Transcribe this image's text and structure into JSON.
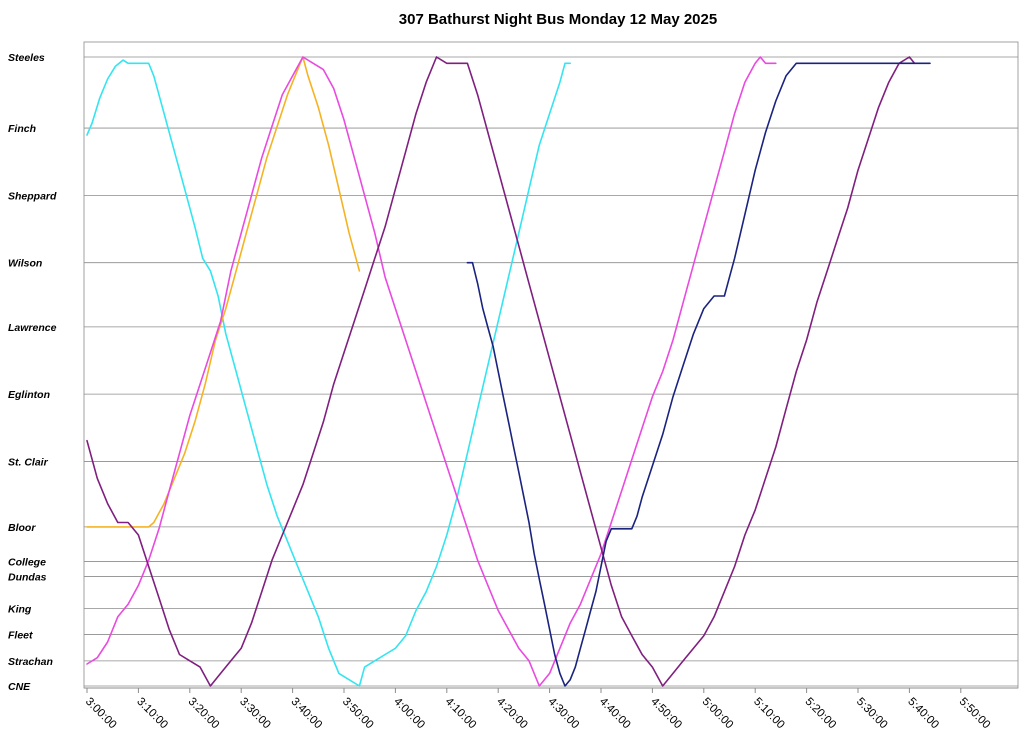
{
  "chart_data": {
    "type": "line",
    "title": "307 Bathurst Night Bus Monday 12 May 2025",
    "xlabel": "",
    "ylabel": "",
    "x_range": [
      "3:00:00",
      "6:00:00"
    ],
    "x_ticks": [
      "3:00:00",
      "3:10:00",
      "3:20:00",
      "3:30:00",
      "3:40:00",
      "3:50:00",
      "4:00:00",
      "4:10:00",
      "4:20:00",
      "4:30:00",
      "4:40:00",
      "4:50:00",
      "5:00:00",
      "5:10:00",
      "5:20:00",
      "5:30:00",
      "5:40:00",
      "5:50:00"
    ],
    "y_stops": [
      {
        "name": "Steeles",
        "pos": 1.0
      },
      {
        "name": "Finch",
        "pos": 0.887
      },
      {
        "name": "Sheppard",
        "pos": 0.78
      },
      {
        "name": "Wilson",
        "pos": 0.673
      },
      {
        "name": "Lawrence",
        "pos": 0.571
      },
      {
        "name": "Eglinton",
        "pos": 0.464
      },
      {
        "name": "St. Clair",
        "pos": 0.357
      },
      {
        "name": "Bloor",
        "pos": 0.253
      },
      {
        "name": "College",
        "pos": 0.198
      },
      {
        "name": "Dundas",
        "pos": 0.174
      },
      {
        "name": "King",
        "pos": 0.123
      },
      {
        "name": "Fleet",
        "pos": 0.082
      },
      {
        "name": "Strachan",
        "pos": 0.04
      },
      {
        "name": "CNE",
        "pos": 0.0
      }
    ],
    "grid": true,
    "legend": "none",
    "series": [
      {
        "color": "#33e5f0",
        "points": [
          [
            "3:00:00",
            0.876
          ],
          [
            "3:01:00",
            0.895
          ],
          [
            "3:02:30",
            0.935
          ],
          [
            "3:04:00",
            0.965
          ],
          [
            "3:05:30",
            0.985
          ],
          [
            "3:07:00",
            0.995
          ],
          [
            "3:08:00",
            0.99
          ],
          [
            "3:12:00",
            0.99
          ],
          [
            "3:13:00",
            0.97
          ],
          [
            "3:15:00",
            0.91
          ],
          [
            "3:17:00",
            0.85
          ],
          [
            "3:19:00",
            0.79
          ],
          [
            "3:21:00",
            0.73
          ],
          [
            "3:22:30",
            0.68
          ],
          [
            "3:24:00",
            0.66
          ],
          [
            "3:25:30",
            0.62
          ],
          [
            "3:27:00",
            0.56
          ],
          [
            "3:29:00",
            0.5
          ],
          [
            "3:31:00",
            0.44
          ],
          [
            "3:33:00",
            0.38
          ],
          [
            "3:35:00",
            0.32
          ],
          [
            "3:37:00",
            0.27
          ],
          [
            "3:39:00",
            0.23
          ],
          [
            "3:41:00",
            0.19
          ],
          [
            "3:43:00",
            0.15
          ],
          [
            "3:45:00",
            0.11
          ],
          [
            "3:47:00",
            0.06
          ],
          [
            "3:49:00",
            0.02
          ],
          [
            "3:51:00",
            0.01
          ],
          [
            "3:53:00",
            0.0
          ],
          [
            "3:54:00",
            0.03
          ],
          [
            "3:56:00",
            0.04
          ],
          [
            "3:58:00",
            0.05
          ],
          [
            "4:00:00",
            0.06
          ],
          [
            "4:02:00",
            0.08
          ],
          [
            "4:04:00",
            0.12
          ],
          [
            "4:06:00",
            0.15
          ],
          [
            "4:08:00",
            0.19
          ],
          [
            "4:10:00",
            0.24
          ],
          [
            "4:12:00",
            0.3
          ],
          [
            "4:14:00",
            0.37
          ],
          [
            "4:16:00",
            0.44
          ],
          [
            "4:18:00",
            0.51
          ],
          [
            "4:20:00",
            0.58
          ],
          [
            "4:22:00",
            0.65
          ],
          [
            "4:24:00",
            0.72
          ],
          [
            "4:26:00",
            0.79
          ],
          [
            "4:28:00",
            0.86
          ],
          [
            "4:30:00",
            0.91
          ],
          [
            "4:32:00",
            0.96
          ],
          [
            "4:33:00",
            0.99
          ],
          [
            "4:34:00",
            0.99
          ]
        ]
      },
      {
        "color": "#f5b324",
        "points": [
          [
            "3:00:00",
            0.253
          ],
          [
            "3:12:00",
            0.253
          ],
          [
            "3:13:00",
            0.26
          ],
          [
            "3:15:00",
            0.29
          ],
          [
            "3:17:00",
            0.33
          ],
          [
            "3:19:00",
            0.37
          ],
          [
            "3:21:00",
            0.42
          ],
          [
            "3:23:00",
            0.48
          ],
          [
            "3:25:00",
            0.55
          ],
          [
            "3:27:00",
            0.6
          ],
          [
            "3:29:00",
            0.66
          ],
          [
            "3:31:00",
            0.72
          ],
          [
            "3:33:00",
            0.78
          ],
          [
            "3:35:00",
            0.84
          ],
          [
            "3:37:00",
            0.89
          ],
          [
            "3:39:00",
            0.94
          ],
          [
            "3:41:00",
            0.98
          ],
          [
            "3:42:00",
            1.0
          ],
          [
            "3:43:00",
            0.97
          ],
          [
            "3:45:00",
            0.92
          ],
          [
            "3:47:00",
            0.86
          ],
          [
            "3:49:00",
            0.79
          ],
          [
            "3:51:00",
            0.72
          ],
          [
            "3:53:00",
            0.66
          ]
        ]
      },
      {
        "color": "#e94ae0",
        "points": [
          [
            "3:00:00",
            0.035
          ],
          [
            "3:02:00",
            0.045
          ],
          [
            "3:04:00",
            0.07
          ],
          [
            "3:06:00",
            0.11
          ],
          [
            "3:08:00",
            0.13
          ],
          [
            "3:10:00",
            0.16
          ],
          [
            "3:12:00",
            0.2
          ],
          [
            "3:14:00",
            0.25
          ],
          [
            "3:16:00",
            0.31
          ],
          [
            "3:18:00",
            0.37
          ],
          [
            "3:20:00",
            0.43
          ],
          [
            "3:22:00",
            0.48
          ],
          [
            "3:24:00",
            0.53
          ],
          [
            "3:26:00",
            0.58
          ],
          [
            "3:28:00",
            0.66
          ],
          [
            "3:30:00",
            0.72
          ],
          [
            "3:32:00",
            0.78
          ],
          [
            "3:34:00",
            0.84
          ],
          [
            "3:36:00",
            0.89
          ],
          [
            "3:38:00",
            0.94
          ],
          [
            "3:40:00",
            0.97
          ],
          [
            "3:42:00",
            1.0
          ],
          [
            "3:44:00",
            0.99
          ],
          [
            "3:46:00",
            0.98
          ],
          [
            "3:48:00",
            0.95
          ],
          [
            "3:50:00",
            0.9
          ],
          [
            "3:52:00",
            0.84
          ],
          [
            "3:54:00",
            0.78
          ],
          [
            "3:56:00",
            0.72
          ],
          [
            "3:58:00",
            0.65
          ],
          [
            "4:00:00",
            0.6
          ],
          [
            "4:02:00",
            0.55
          ],
          [
            "4:04:00",
            0.5
          ],
          [
            "4:06:00",
            0.45
          ],
          [
            "4:08:00",
            0.4
          ],
          [
            "4:10:00",
            0.35
          ],
          [
            "4:12:00",
            0.3
          ],
          [
            "4:14:00",
            0.25
          ],
          [
            "4:16:00",
            0.2
          ],
          [
            "4:18:00",
            0.16
          ],
          [
            "4:20:00",
            0.12
          ],
          [
            "4:22:00",
            0.09
          ],
          [
            "4:24:00",
            0.06
          ],
          [
            "4:26:00",
            0.04
          ],
          [
            "4:28:00",
            0.0
          ],
          [
            "4:30:00",
            0.02
          ],
          [
            "4:32:00",
            0.06
          ],
          [
            "4:34:00",
            0.1
          ],
          [
            "4:36:00",
            0.13
          ],
          [
            "4:38:00",
            0.17
          ],
          [
            "4:40:00",
            0.21
          ],
          [
            "4:42:00",
            0.26
          ],
          [
            "4:44:00",
            0.31
          ],
          [
            "4:46:00",
            0.36
          ],
          [
            "4:48:00",
            0.41
          ],
          [
            "4:50:00",
            0.46
          ],
          [
            "4:52:00",
            0.5
          ],
          [
            "4:54:00",
            0.55
          ],
          [
            "4:56:00",
            0.61
          ],
          [
            "4:58:00",
            0.67
          ],
          [
            "5:00:00",
            0.73
          ],
          [
            "5:02:00",
            0.79
          ],
          [
            "5:04:00",
            0.85
          ],
          [
            "5:06:00",
            0.91
          ],
          [
            "5:08:00",
            0.96
          ],
          [
            "5:10:00",
            0.99
          ],
          [
            "5:11:00",
            1.0
          ],
          [
            "5:12:00",
            0.99
          ],
          [
            "5:14:00",
            0.99
          ]
        ]
      },
      {
        "color": "#7f1f7f",
        "points": [
          [
            "3:00:00",
            0.39
          ],
          [
            "3:02:00",
            0.33
          ],
          [
            "3:04:00",
            0.29
          ],
          [
            "3:06:00",
            0.26
          ],
          [
            "3:08:00",
            0.26
          ],
          [
            "3:10:00",
            0.24
          ],
          [
            "3:12:00",
            0.19
          ],
          [
            "3:14:00",
            0.14
          ],
          [
            "3:16:00",
            0.09
          ],
          [
            "3:18:00",
            0.05
          ],
          [
            "3:20:00",
            0.04
          ],
          [
            "3:22:00",
            0.03
          ],
          [
            "3:24:00",
            0.0
          ],
          [
            "3:26:00",
            0.02
          ],
          [
            "3:28:00",
            0.04
          ],
          [
            "3:30:00",
            0.06
          ],
          [
            "3:32:00",
            0.1
          ],
          [
            "3:34:00",
            0.15
          ],
          [
            "3:36:00",
            0.2
          ],
          [
            "3:38:00",
            0.24
          ],
          [
            "3:40:00",
            0.28
          ],
          [
            "3:42:00",
            0.32
          ],
          [
            "3:44:00",
            0.37
          ],
          [
            "3:46:00",
            0.42
          ],
          [
            "3:48:00",
            0.48
          ],
          [
            "3:50:00",
            0.53
          ],
          [
            "3:52:00",
            0.58
          ],
          [
            "3:54:00",
            0.63
          ],
          [
            "3:56:00",
            0.68
          ],
          [
            "3:58:00",
            0.73
          ],
          [
            "4:00:00",
            0.79
          ],
          [
            "4:02:00",
            0.85
          ],
          [
            "4:04:00",
            0.91
          ],
          [
            "4:06:00",
            0.96
          ],
          [
            "4:08:00",
            1.0
          ],
          [
            "4:10:00",
            0.99
          ],
          [
            "4:12:00",
            0.99
          ],
          [
            "4:14:00",
            0.99
          ],
          [
            "4:16:00",
            0.94
          ],
          [
            "4:18:00",
            0.88
          ],
          [
            "4:20:00",
            0.82
          ],
          [
            "4:22:00",
            0.76
          ],
          [
            "4:24:00",
            0.7
          ],
          [
            "4:26:00",
            0.64
          ],
          [
            "4:28:00",
            0.58
          ],
          [
            "4:30:00",
            0.52
          ],
          [
            "4:32:00",
            0.46
          ],
          [
            "4:34:00",
            0.4
          ],
          [
            "4:36:00",
            0.34
          ],
          [
            "4:38:00",
            0.28
          ],
          [
            "4:40:00",
            0.22
          ],
          [
            "4:42:00",
            0.16
          ],
          [
            "4:44:00",
            0.11
          ],
          [
            "4:46:00",
            0.08
          ],
          [
            "4:48:00",
            0.05
          ],
          [
            "4:50:00",
            0.03
          ],
          [
            "4:52:00",
            0.0
          ],
          [
            "4:54:00",
            0.02
          ],
          [
            "4:56:00",
            0.04
          ],
          [
            "4:58:00",
            0.06
          ],
          [
            "5:00:00",
            0.08
          ],
          [
            "5:02:00",
            0.11
          ],
          [
            "5:04:00",
            0.15
          ],
          [
            "5:06:00",
            0.19
          ],
          [
            "5:08:00",
            0.24
          ],
          [
            "5:10:00",
            0.28
          ],
          [
            "5:12:00",
            0.33
          ],
          [
            "5:14:00",
            0.38
          ],
          [
            "5:16:00",
            0.44
          ],
          [
            "5:18:00",
            0.5
          ],
          [
            "5:20:00",
            0.55
          ],
          [
            "5:22:00",
            0.61
          ],
          [
            "5:24:00",
            0.66
          ],
          [
            "5:26:00",
            0.71
          ],
          [
            "5:28:00",
            0.76
          ],
          [
            "5:30:00",
            0.82
          ],
          [
            "5:32:00",
            0.87
          ],
          [
            "5:34:00",
            0.92
          ],
          [
            "5:36:00",
            0.96
          ],
          [
            "5:38:00",
            0.99
          ],
          [
            "5:40:00",
            1.0
          ],
          [
            "5:41:00",
            0.99
          ]
        ]
      },
      {
        "color": "#1a237e",
        "points": [
          [
            "4:14:00",
            0.673
          ],
          [
            "4:15:00",
            0.673
          ],
          [
            "4:16:00",
            0.64
          ],
          [
            "4:17:00",
            0.6
          ],
          [
            "4:18:00",
            0.57
          ],
          [
            "4:19:00",
            0.54
          ],
          [
            "4:20:00",
            0.5
          ],
          [
            "4:21:00",
            0.46
          ],
          [
            "4:22:00",
            0.42
          ],
          [
            "4:23:00",
            0.38
          ],
          [
            "4:24:00",
            0.34
          ],
          [
            "4:25:00",
            0.3
          ],
          [
            "4:26:00",
            0.26
          ],
          [
            "4:27:00",
            0.21
          ],
          [
            "4:28:00",
            0.17
          ],
          [
            "4:29:00",
            0.13
          ],
          [
            "4:30:00",
            0.09
          ],
          [
            "4:31:00",
            0.05
          ],
          [
            "4:32:00",
            0.02
          ],
          [
            "4:33:00",
            0.0
          ],
          [
            "4:34:00",
            0.01
          ],
          [
            "4:35:00",
            0.03
          ],
          [
            "4:36:00",
            0.06
          ],
          [
            "4:37:00",
            0.09
          ],
          [
            "4:38:00",
            0.12
          ],
          [
            "4:39:00",
            0.15
          ],
          [
            "4:40:00",
            0.19
          ],
          [
            "4:41:00",
            0.23
          ],
          [
            "4:42:00",
            0.25
          ],
          [
            "4:44:00",
            0.25
          ],
          [
            "4:46:00",
            0.25
          ],
          [
            "4:47:00",
            0.27
          ],
          [
            "4:48:00",
            0.3
          ],
          [
            "4:50:00",
            0.35
          ],
          [
            "4:52:00",
            0.4
          ],
          [
            "4:54:00",
            0.46
          ],
          [
            "4:56:00",
            0.51
          ],
          [
            "4:58:00",
            0.56
          ],
          [
            "5:00:00",
            0.6
          ],
          [
            "5:02:00",
            0.62
          ],
          [
            "5:04:00",
            0.62
          ],
          [
            "5:05:00",
            0.65
          ],
          [
            "5:06:00",
            0.68
          ],
          [
            "5:08:00",
            0.75
          ],
          [
            "5:10:00",
            0.82
          ],
          [
            "5:12:00",
            0.88
          ],
          [
            "5:14:00",
            0.93
          ],
          [
            "5:16:00",
            0.97
          ],
          [
            "5:18:00",
            0.99
          ],
          [
            "5:20:00",
            0.99
          ],
          [
            "5:30:00",
            0.99
          ],
          [
            "5:44:00",
            0.99
          ]
        ]
      }
    ]
  }
}
